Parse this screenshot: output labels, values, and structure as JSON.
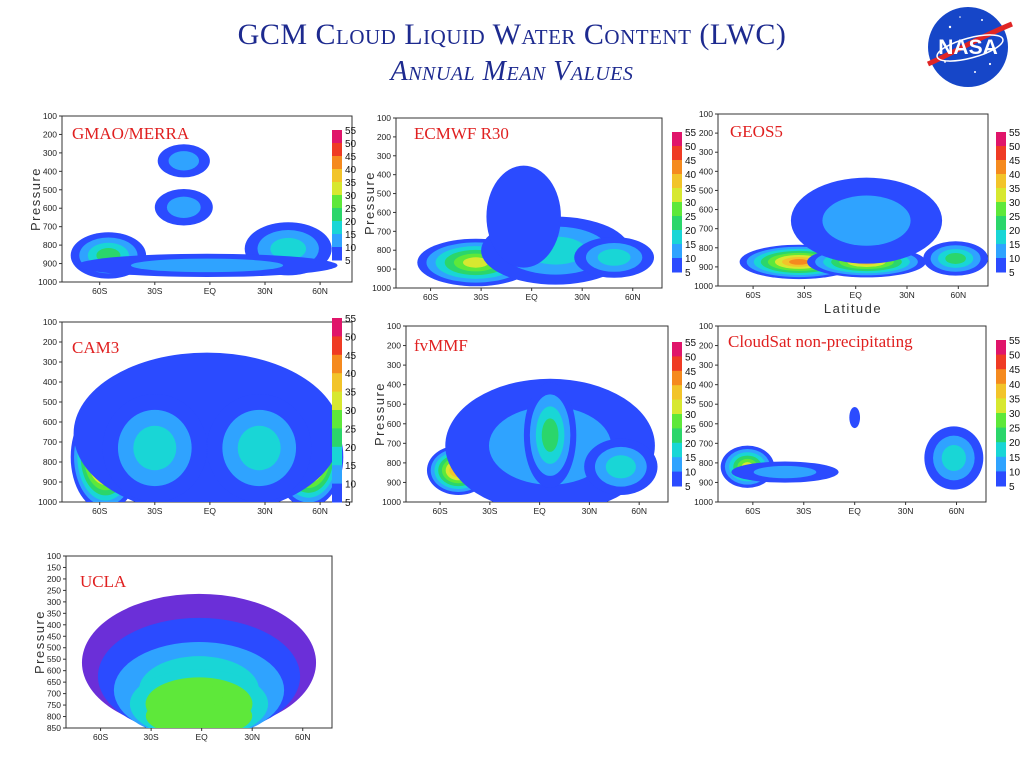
{
  "header": {
    "title": "GCM Cloud Liquid Water Content (LWC)",
    "subtitle": "Annual Mean Values",
    "logo_text": "NASA"
  },
  "colors": {
    "title": "#1d2a8f",
    "panel_label": "#e02020",
    "scale": [
      "#2b4bff",
      "#2fa3ff",
      "#19d6d6",
      "#2bd66b",
      "#5ee83a",
      "#d7e830",
      "#f2c42a",
      "#f58a1f",
      "#ef3b24",
      "#e0156a"
    ]
  },
  "chart_data": [
    {
      "type": "heatmap",
      "label": "GMAO/MERRA",
      "ylabel": "Pressure",
      "y_ticks": [
        "100",
        "200",
        "300",
        "400",
        "500",
        "600",
        "700",
        "800",
        "900",
        "1000"
      ],
      "x_ticks": [
        "60S",
        "30S",
        "EQ",
        "30N",
        "60N"
      ],
      "colorbar_ticks": [
        "55",
        "50",
        "45",
        "40",
        "35",
        "30",
        "25",
        "20",
        "15",
        "10",
        "5"
      ]
    },
    {
      "type": "heatmap",
      "label": "ECMWF R30",
      "ylabel": "Pressure",
      "y_ticks": [
        "100",
        "200",
        "300",
        "400",
        "500",
        "600",
        "700",
        "800",
        "900",
        "1000"
      ],
      "x_ticks": [
        "60S",
        "30S",
        "EQ",
        "30N",
        "60N"
      ],
      "colorbar_ticks": [
        "55",
        "50",
        "45",
        "40",
        "35",
        "30",
        "25",
        "20",
        "15",
        "10",
        "5"
      ]
    },
    {
      "type": "heatmap",
      "label": "GEOS5",
      "xlabel": "Latitude",
      "y_ticks": [
        "100",
        "200",
        "300",
        "400",
        "500",
        "600",
        "700",
        "800",
        "900",
        "1000"
      ],
      "x_ticks": [
        "60S",
        "30S",
        "EQ",
        "30N",
        "60N"
      ],
      "colorbar_ticks": [
        "55",
        "50",
        "45",
        "40",
        "35",
        "30",
        "25",
        "20",
        "15",
        "10",
        "5"
      ]
    },
    {
      "type": "heatmap",
      "label": "CAM3",
      "y_ticks": [
        "100",
        "200",
        "300",
        "400",
        "500",
        "600",
        "700",
        "800",
        "900",
        "1000"
      ],
      "x_ticks": [
        "60S",
        "30S",
        "EQ",
        "30N",
        "60N"
      ],
      "colorbar_ticks": [
        "55",
        "50",
        "45",
        "40",
        "35",
        "30",
        "25",
        "20",
        "15",
        "10",
        "5"
      ]
    },
    {
      "type": "heatmap",
      "label": "fvMMF",
      "ylabel": "Pressure",
      "y_ticks": [
        "100",
        "200",
        "300",
        "400",
        "500",
        "600",
        "700",
        "800",
        "900",
        "1000"
      ],
      "x_ticks": [
        "60S",
        "30S",
        "EQ",
        "30N",
        "60N"
      ],
      "colorbar_ticks": [
        "55",
        "50",
        "45",
        "40",
        "35",
        "30",
        "25",
        "20",
        "15",
        "10",
        "5"
      ]
    },
    {
      "type": "heatmap",
      "label": "CloudSat non-precipitating",
      "y_ticks": [
        "100",
        "200",
        "300",
        "400",
        "500",
        "600",
        "700",
        "800",
        "900",
        "1000"
      ],
      "x_ticks": [
        "60S",
        "30S",
        "EQ",
        "30N",
        "60N"
      ],
      "colorbar_ticks": [
        "55",
        "50",
        "45",
        "40",
        "35",
        "30",
        "25",
        "20",
        "15",
        "10",
        "5"
      ]
    },
    {
      "type": "heatmap",
      "label": "UCLA",
      "ylabel": "Pressure",
      "y_ticks": [
        "100",
        "150",
        "200",
        "250",
        "300",
        "350",
        "400",
        "450",
        "500",
        "550",
        "600",
        "650",
        "700",
        "750",
        "800",
        "850"
      ],
      "x_ticks": [
        "60S",
        "30S",
        "EQ",
        "30N",
        "60N"
      ]
    }
  ]
}
